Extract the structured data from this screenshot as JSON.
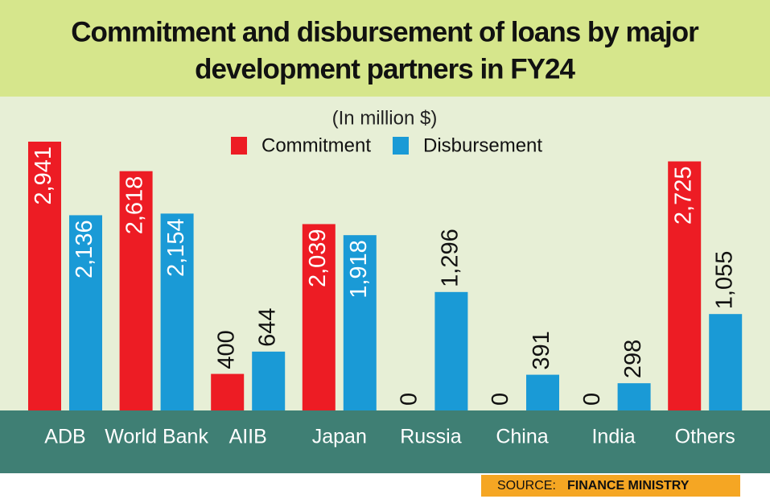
{
  "chart_data": {
    "type": "bar",
    "title": "Commitment and disbursement of loans by major development partners in FY24",
    "subtitle": "(In million $)",
    "categories": [
      "ADB",
      "World Bank",
      "AIIB",
      "Japan",
      "Russia",
      "China",
      "India",
      "Others"
    ],
    "series": [
      {
        "name": "Commitment",
        "color": "#ed1c24",
        "values": [
          2941,
          2618,
          400,
          2039,
          0,
          0,
          0,
          2725
        ],
        "value_labels": [
          "2,941",
          "2,618",
          "400",
          "2,039",
          "0",
          "0",
          "0",
          "2,725"
        ]
      },
      {
        "name": "Disbursement",
        "color": "#1a9ad6",
        "values": [
          2136,
          2154,
          644,
          1918,
          1296,
          391,
          298,
          1055
        ],
        "value_labels": [
          "2,136",
          "2,154",
          "644",
          "1,918",
          "1,296",
          "391",
          "298",
          "1,055"
        ]
      }
    ],
    "source_label": "SOURCE:",
    "source": "FINANCE MINISTRY"
  }
}
